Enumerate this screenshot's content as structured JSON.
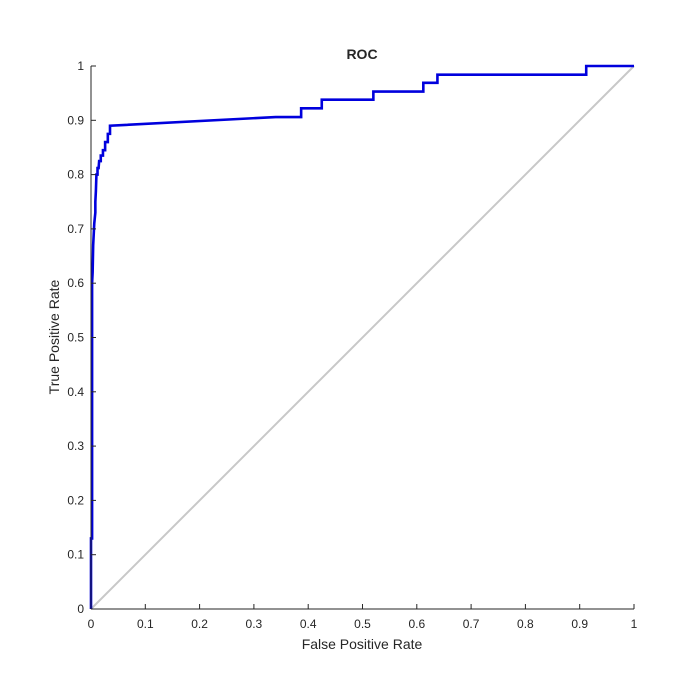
{
  "chart_data": {
    "type": "line",
    "title": "ROC",
    "xlabel": "False Positive Rate",
    "ylabel": "True Positive Rate",
    "xlim": [
      0,
      1
    ],
    "ylim": [
      0,
      1
    ],
    "xticks": [
      0,
      0.1,
      0.2,
      0.3,
      0.4,
      0.5,
      0.6,
      0.7,
      0.8,
      0.9,
      1
    ],
    "xtick_labels": [
      "0",
      "0.1",
      "0.2",
      "0.3",
      "0.4",
      "0.5",
      "0.6",
      "0.7",
      "0.8",
      "0.9",
      "1"
    ],
    "yticks": [
      0,
      0.1,
      0.2,
      0.3,
      0.4,
      0.5,
      0.6,
      0.7,
      0.8,
      0.9,
      1
    ],
    "ytick_labels": [
      "0",
      "0.1",
      "0.2",
      "0.3",
      "0.4",
      "0.5",
      "0.6",
      "0.7",
      "0.8",
      "0.9",
      "1"
    ],
    "grid": false,
    "legend": false,
    "series": [
      {
        "color": "#0000dd",
        "x": [
          0,
          0,
          0.002,
          0.002,
          0.003,
          0.004,
          0.005,
          0.006,
          0.008,
          0.008,
          0.009,
          0.01,
          0.012,
          0.012,
          0.014,
          0.015,
          0.018,
          0.018,
          0.022,
          0.022,
          0.026,
          0.026,
          0.031,
          0.031,
          0.035,
          0.035,
          0.34,
          0.387,
          0.387,
          0.425,
          0.425,
          0.52,
          0.52,
          0.612,
          0.612,
          0.638,
          0.638,
          0.912,
          0.912,
          1
        ],
        "y": [
          0,
          0.13,
          0.13,
          0.6,
          0.62,
          0.67,
          0.69,
          0.71,
          0.73,
          0.75,
          0.77,
          0.8,
          0.8,
          0.812,
          0.812,
          0.825,
          0.825,
          0.835,
          0.835,
          0.845,
          0.845,
          0.86,
          0.86,
          0.875,
          0.875,
          0.89,
          0.906,
          0.906,
          0.922,
          0.922,
          0.938,
          0.938,
          0.953,
          0.953,
          0.969,
          0.969,
          0.984,
          0.984,
          1,
          1
        ]
      },
      {
        "color": "#c8c8c8",
        "x": [
          0,
          1
        ],
        "y": [
          0,
          1
        ]
      }
    ]
  }
}
